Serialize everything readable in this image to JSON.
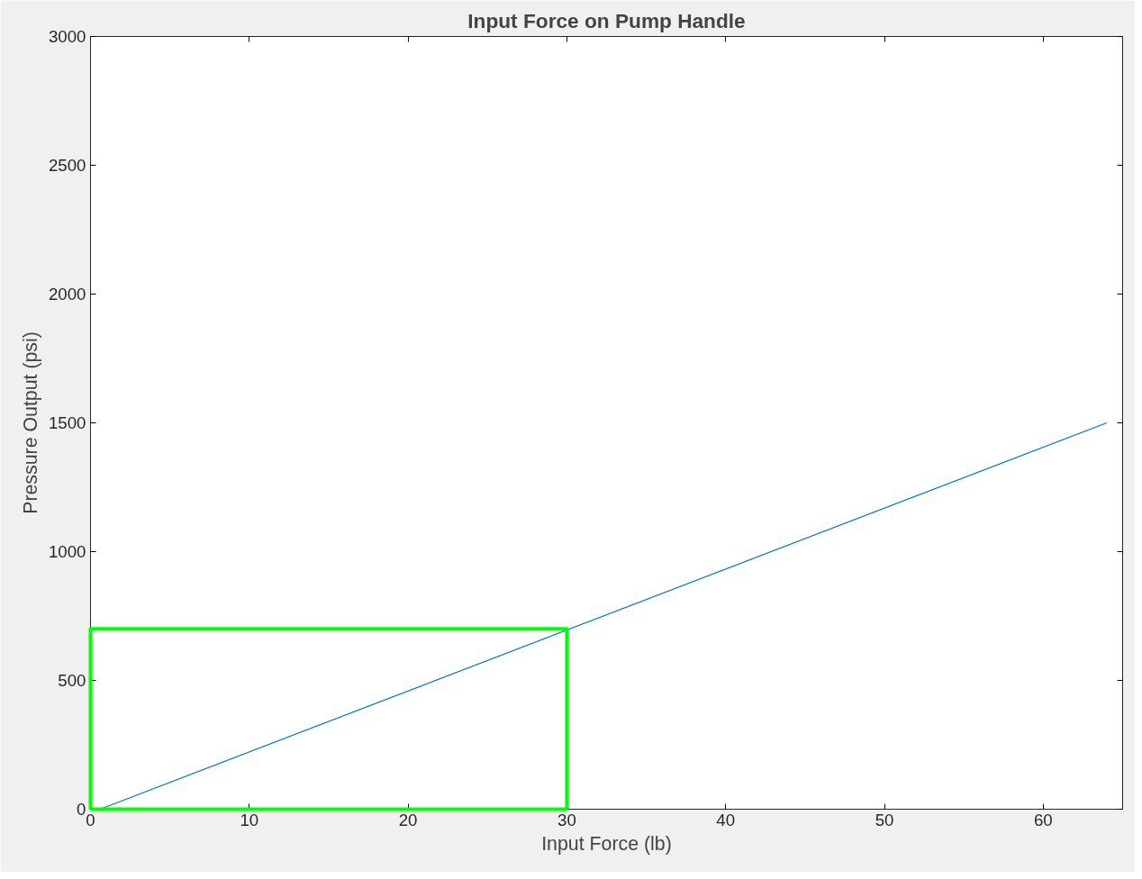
{
  "chart_data": {
    "type": "line",
    "title": "Input Force on Pump Handle",
    "xlabel": "Input Force (lb)",
    "ylabel": "Pressure Output (psi)",
    "xlim": [
      0,
      65
    ],
    "ylim": [
      0,
      3000
    ],
    "xticks": [
      0,
      10,
      20,
      30,
      40,
      50,
      60
    ],
    "yticks": [
      0,
      500,
      1000,
      1500,
      2000,
      2500,
      3000
    ],
    "grid": false,
    "series": [
      {
        "color": "#0072bd",
        "x": [
          0.6,
          64
        ],
        "values": [
          0,
          1500
        ]
      },
      {
        "color": "#00ff00",
        "x": [
          0,
          0,
          30,
          30
        ],
        "values": [
          0,
          700,
          700,
          0
        ]
      },
      {
        "color": "#00ff00",
        "x": [
          0,
          30
        ],
        "values": [
          0,
          0
        ]
      }
    ]
  }
}
